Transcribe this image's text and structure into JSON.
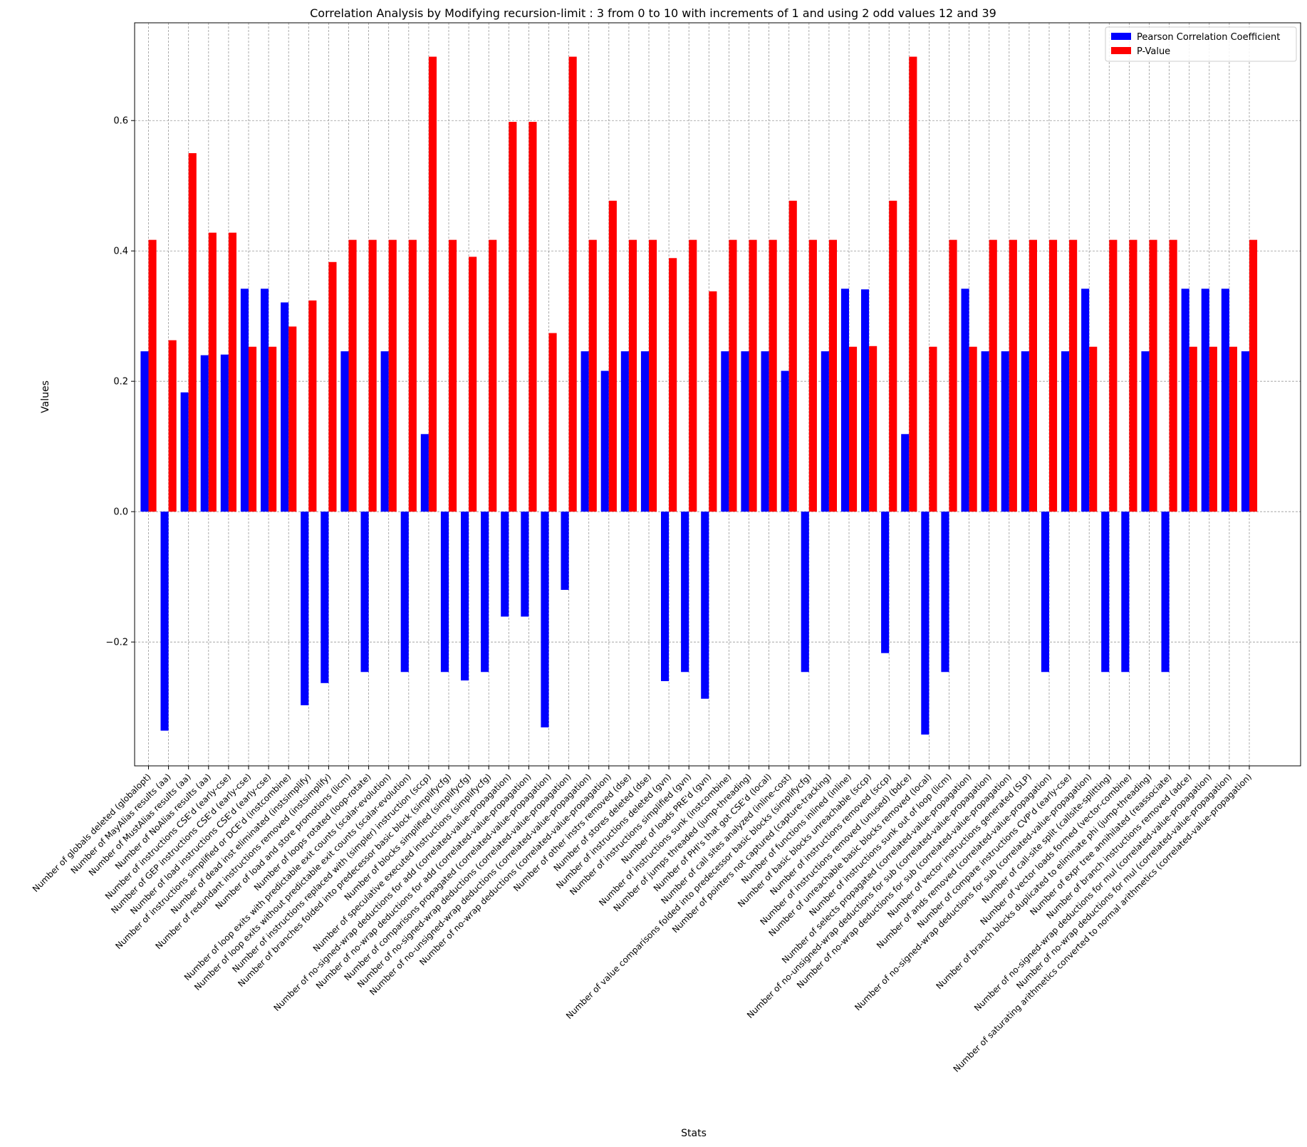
{
  "chart_data": {
    "type": "bar",
    "title": "Correlation Analysis by Modifying recursion-limit : 3 from 0 to 10 with increments of 1 and using 2 odd values 12 and 39",
    "xlabel": "Stats",
    "ylabel": "Values",
    "ylim": [
      -0.39,
      0.75
    ],
    "yticks": [
      -0.2,
      0.0,
      0.2,
      0.4,
      0.6
    ],
    "ytick_labels": [
      "−0.2",
      "0.0",
      "0.2",
      "0.4",
      "0.6"
    ],
    "grid": true,
    "legend_position": "top-right",
    "categories": [
      "Number of globals deleted (globalopt)",
      "Number of MayAlias results (aa)",
      "Number of MustAlias results (aa)",
      "Number of NoAlias results (aa)",
      "Number of instructions CSE'd (early-cse)",
      "Number of GEP instructions CSE'd (early-cse)",
      "Number of load instructions CSE'd (early-cse)",
      "Number of instructions simplified or DCE'd (instcombine)",
      "Number of dead inst eliminated (instsimplify)",
      "Number of redundant instructions removed (instsimplify)",
      "Number of load and store promotions (licm)",
      "Number of loops rotated (loop-rotate)",
      "Number of loop exits with predictable exit counts (scalar-evolution)",
      "Number of loop exits without predictable exit counts (scalar-evolution)",
      "Number of instructions replaced with (simpler) instruction (sccp)",
      "Number of branches folded into predecessor basic block (simplifycfg)",
      "Number of blocks simplified (simplifycfg)",
      "Number of speculative executed instructions (simplifycfg)",
      "Number of no-signed-wrap deductions for add (correlated-value-propagation)",
      "Number of no-wrap deductions for add (correlated-value-propagation)",
      "Number of comparisons propagated (correlated-value-propagation)",
      "Number of no-signed-wrap deductions (correlated-value-propagation)",
      "Number of no-unsigned-wrap deductions (correlated-value-propagation)",
      "Number of no-wrap deductions (correlated-value-propagation)",
      "Number of other instrs removed (dse)",
      "Number of stores deleted (dse)",
      "Number of instructions deleted (gvn)",
      "Number of instructions simplified (gvn)",
      "Number of loads PRE'd (gvn)",
      "Number of instructions sunk (instcombine)",
      "Number of jumps threaded (jump-threading)",
      "Number of PHI's that got CSE'd (local)",
      "Number of call sites analyzed (inline-cost)",
      "Number of value comparisons folded into predecessor basic blocks (simplifycfg)",
      "Number of pointers not captured (capture-tracking)",
      "Number of functions inlined (inline)",
      "Number of basic blocks unreachable (sccp)",
      "Number of instructions removed (sccp)",
      "Number of instructions removed (unused) (bdce)",
      "Number of unreachable basic blocks removed (local)",
      "Number of instructions sunk out of loop (licm)",
      "Number of selects propagated (correlated-value-propagation)",
      "Number of no-unsigned-wrap deductions for sub (correlated-value-propagation)",
      "Number of no-wrap deductions for sub (correlated-value-propagation)",
      "Number of vector instructions generated (SLP)",
      "Number of ands removed (correlated-value-propagation)",
      "Number of compare instructions CVP'd (early-cse)",
      "Number of no-signed-wrap deductions for sub (correlated-value-propagation)",
      "Number of call-site split (callsite-splitting)",
      "Number of vector loads formed (vector-combine)",
      "Number of branch blocks duplicated to eliminate phi (jump-threading)",
      "Number of expr tree annihilated (reassociate)",
      "Number of branch instructions removed (adce)",
      "Number of no-signed-wrap deductions for mul (correlated-value-propagation)",
      "Number of no-wrap deductions for mul (correlated-value-propagation)",
      "Number of saturating arithmetics converted to normal arithmetics (correlated-value-propagation)"
    ],
    "series": [
      {
        "name": "Pearson Correlation Coefficient",
        "color": "#0000ff",
        "values": [
          0.246,
          -0.336,
          0.183,
          0.24,
          0.241,
          0.342,
          0.342,
          0.321,
          -0.297,
          -0.263,
          0.246,
          -0.246,
          0.246,
          -0.246,
          0.119,
          -0.246,
          -0.259,
          -0.246,
          -0.161,
          -0.161,
          -0.331,
          -0.12,
          0.246,
          0.216,
          0.246,
          0.246,
          -0.26,
          -0.246,
          -0.287,
          0.246,
          0.246,
          0.246,
          0.216,
          -0.246,
          0.246,
          0.342,
          0.341,
          -0.217,
          0.119,
          -0.342,
          -0.246,
          0.342,
          0.246,
          0.246,
          0.246,
          -0.246,
          0.246,
          0.342,
          -0.246,
          -0.246,
          0.246,
          -0.246,
          0.342,
          0.342,
          0.342,
          0.246
        ]
      },
      {
        "name": "P-Value",
        "color": "#ff0000",
        "values": [
          0.417,
          0.263,
          0.55,
          0.428,
          0.428,
          0.253,
          0.253,
          0.284,
          0.324,
          0.383,
          0.417,
          0.417,
          0.417,
          0.417,
          0.698,
          0.417,
          0.391,
          0.417,
          0.598,
          0.598,
          0.274,
          0.698,
          0.417,
          0.477,
          0.417,
          0.417,
          0.389,
          0.417,
          0.338,
          0.417,
          0.417,
          0.417,
          0.477,
          0.417,
          0.417,
          0.253,
          0.254,
          0.477,
          0.698,
          0.253,
          0.417,
          0.253,
          0.417,
          0.417,
          0.417,
          0.417,
          0.417,
          0.253,
          0.417,
          0.417,
          0.417,
          0.417,
          0.253,
          0.253,
          0.253,
          0.417
        ]
      }
    ]
  }
}
